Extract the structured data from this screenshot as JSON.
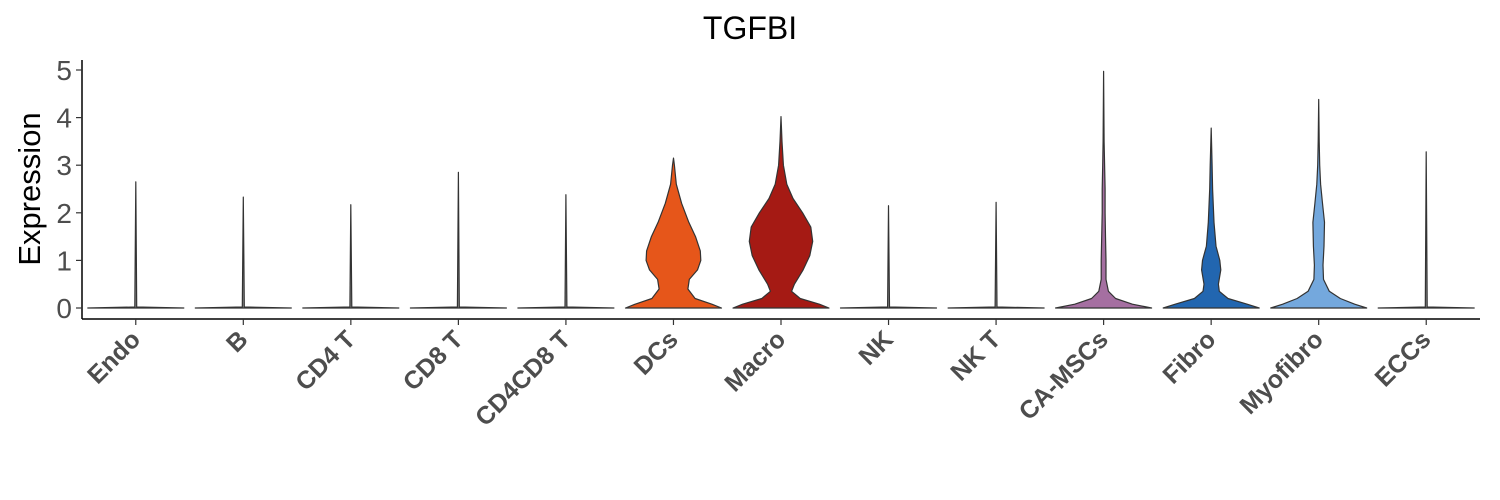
{
  "chart_data": {
    "type": "violin",
    "title": "TGFBI",
    "xlabel": "",
    "ylabel": "Expression",
    "ylim": [
      0,
      5.2
    ],
    "yticks": [
      0,
      1,
      2,
      3,
      4,
      5
    ],
    "grid": false,
    "legend": "none",
    "categories": [
      "Endo",
      "B",
      "CD4 T",
      "CD8 T",
      "CD4CD8 T",
      "DCs",
      "Macro",
      "NK",
      "NK T",
      "CA-MSCs",
      "Fibro",
      "Myofibro",
      "ECCs"
    ],
    "max_values": [
      2.65,
      2.33,
      2.17,
      2.85,
      2.38,
      3.15,
      4.02,
      2.15,
      2.22,
      4.97,
      3.78,
      4.38,
      3.28
    ],
    "colors": [
      "#8a8a8a",
      "#8a8a8a",
      "#8a8a8a",
      "#8a8a8a",
      "#8a8a8a",
      "#E6561A",
      "#A51A14",
      "#8a8a8a",
      "#8a8a8a",
      "#A56FA1",
      "#2266B0",
      "#74A8DD",
      "#8a8a8a"
    ],
    "density_profiles": [
      [
        [
          0,
          1
        ],
        [
          0.02,
          0.02
        ],
        [
          2.65,
          0
        ]
      ],
      [
        [
          0,
          1
        ],
        [
          0.02,
          0.02
        ],
        [
          2.33,
          0
        ]
      ],
      [
        [
          0,
          1
        ],
        [
          0.02,
          0.02
        ],
        [
          2.17,
          0
        ]
      ],
      [
        [
          0,
          1
        ],
        [
          0.02,
          0.02
        ],
        [
          2.85,
          0
        ]
      ],
      [
        [
          0,
          1
        ],
        [
          0.02,
          0.02
        ],
        [
          2.38,
          0
        ]
      ],
      [
        [
          0,
          1
        ],
        [
          0.08,
          0.8
        ],
        [
          0.2,
          0.45
        ],
        [
          0.4,
          0.3
        ],
        [
          0.6,
          0.33
        ],
        [
          0.8,
          0.5
        ],
        [
          1.0,
          0.57
        ],
        [
          1.2,
          0.56
        ],
        [
          1.5,
          0.46
        ],
        [
          1.8,
          0.32
        ],
        [
          2.2,
          0.17
        ],
        [
          2.6,
          0.06
        ],
        [
          3.0,
          0.02
        ],
        [
          3.15,
          0
        ]
      ],
      [
        [
          0,
          1
        ],
        [
          0.08,
          0.8
        ],
        [
          0.2,
          0.4
        ],
        [
          0.35,
          0.22
        ],
        [
          0.5,
          0.28
        ],
        [
          0.8,
          0.46
        ],
        [
          1.1,
          0.6
        ],
        [
          1.4,
          0.66
        ],
        [
          1.7,
          0.62
        ],
        [
          2.0,
          0.45
        ],
        [
          2.3,
          0.25
        ],
        [
          2.6,
          0.12
        ],
        [
          3.0,
          0.05
        ],
        [
          3.5,
          0.02
        ],
        [
          4.02,
          0
        ]
      ],
      [
        [
          0,
          1
        ],
        [
          0.02,
          0.02
        ],
        [
          2.15,
          0
        ]
      ],
      [
        [
          0,
          1
        ],
        [
          0.02,
          0.02
        ],
        [
          2.22,
          0
        ]
      ],
      [
        [
          0,
          1
        ],
        [
          0.08,
          0.6
        ],
        [
          0.2,
          0.25
        ],
        [
          0.35,
          0.1
        ],
        [
          0.6,
          0.05
        ],
        [
          1.0,
          0.05
        ],
        [
          1.5,
          0.04
        ],
        [
          2.0,
          0.03
        ],
        [
          2.5,
          0.03
        ],
        [
          3.0,
          0.02
        ],
        [
          3.5,
          0.01
        ],
        [
          4.97,
          0
        ]
      ],
      [
        [
          0,
          1
        ],
        [
          0.08,
          0.75
        ],
        [
          0.2,
          0.35
        ],
        [
          0.35,
          0.17
        ],
        [
          0.5,
          0.15
        ],
        [
          0.8,
          0.2
        ],
        [
          1.0,
          0.18
        ],
        [
          1.3,
          0.1
        ],
        [
          1.8,
          0.06
        ],
        [
          2.5,
          0.03
        ],
        [
          3.0,
          0.02
        ],
        [
          3.78,
          0
        ]
      ],
      [
        [
          0,
          1
        ],
        [
          0.08,
          0.75
        ],
        [
          0.2,
          0.45
        ],
        [
          0.35,
          0.22
        ],
        [
          0.6,
          0.1
        ],
        [
          0.9,
          0.09
        ],
        [
          1.3,
          0.11
        ],
        [
          1.8,
          0.12
        ],
        [
          2.2,
          0.08
        ],
        [
          2.6,
          0.04
        ],
        [
          3.0,
          0.02
        ],
        [
          3.5,
          0.01
        ],
        [
          4.38,
          0
        ]
      ],
      [
        [
          0,
          1
        ],
        [
          0.02,
          0.02
        ],
        [
          3.28,
          0
        ]
      ]
    ]
  }
}
